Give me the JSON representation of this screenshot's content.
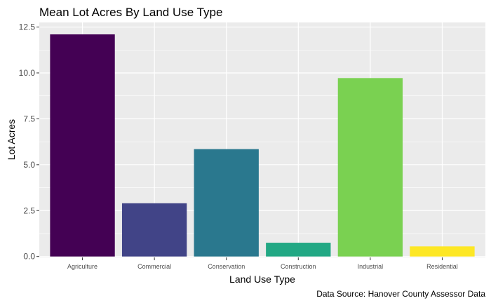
{
  "chart_data": {
    "type": "bar",
    "title": "Mean Lot Acres By Land Use Type",
    "xlabel": "Land Use Type",
    "ylabel": "Lot Acres",
    "caption": "Data Source: Hanover County Assessor Data",
    "categories": [
      "Agriculture",
      "Commercial",
      "Conservation",
      "Construction",
      "Industrial",
      "Residential"
    ],
    "values": [
      12.1,
      2.9,
      5.85,
      0.75,
      9.72,
      0.55
    ],
    "colors": [
      "#440154",
      "#414487",
      "#2A788E",
      "#22A884",
      "#7AD151",
      "#FDE725"
    ],
    "ylim": [
      -0.05,
      12.75
    ],
    "yticks": [
      0,
      2.5,
      5,
      7.5,
      10,
      12.5
    ],
    "ytick_labels": [
      "0.0",
      "2.5",
      "5.0",
      "7.5",
      "10.0",
      "12.5"
    ],
    "panel_background": "#EBEBEB",
    "grid": true,
    "legend": "none"
  }
}
